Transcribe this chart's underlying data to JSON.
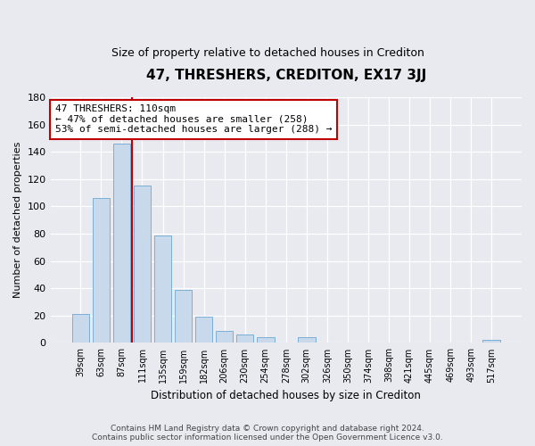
{
  "title": "47, THRESHERS, CREDITON, EX17 3JJ",
  "subtitle": "Size of property relative to detached houses in Crediton",
  "xlabel": "Distribution of detached houses by size in Crediton",
  "ylabel": "Number of detached properties",
  "bar_labels": [
    "39sqm",
    "63sqm",
    "87sqm",
    "111sqm",
    "135sqm",
    "159sqm",
    "182sqm",
    "206sqm",
    "230sqm",
    "254sqm",
    "278sqm",
    "302sqm",
    "326sqm",
    "350sqm",
    "374sqm",
    "398sqm",
    "421sqm",
    "445sqm",
    "469sqm",
    "493sqm",
    "517sqm"
  ],
  "bar_values": [
    21,
    106,
    146,
    115,
    79,
    39,
    19,
    9,
    6,
    4,
    0,
    4,
    0,
    0,
    0,
    0,
    0,
    0,
    0,
    0,
    2
  ],
  "bar_color": "#c9d9ec",
  "bar_edge_color": "#7bafd4",
  "vline_color": "#c00000",
  "annotation_title": "47 THRESHERS: 110sqm",
  "annotation_line1": "← 47% of detached houses are smaller (258)",
  "annotation_line2": "53% of semi-detached houses are larger (288) →",
  "ylim": [
    0,
    180
  ],
  "yticks": [
    0,
    20,
    40,
    60,
    80,
    100,
    120,
    140,
    160,
    180
  ],
  "footer_line1": "Contains HM Land Registry data © Crown copyright and database right 2024.",
  "footer_line2": "Contains public sector information licensed under the Open Government Licence v3.0.",
  "background_color": "#e8eaf0"
}
